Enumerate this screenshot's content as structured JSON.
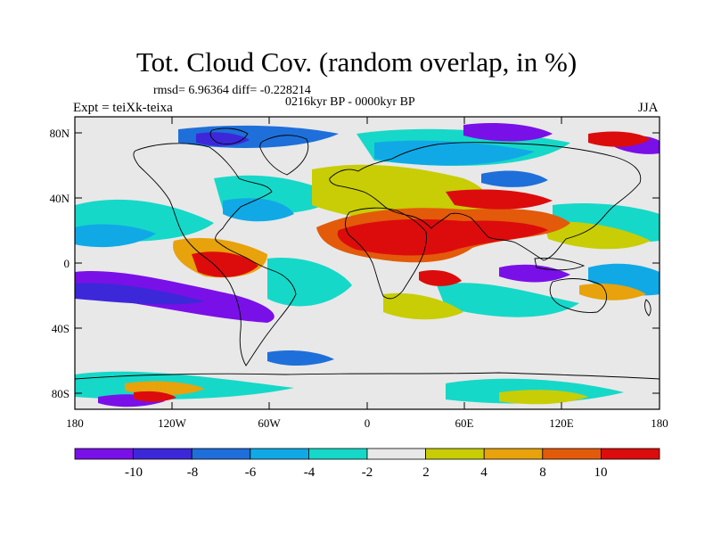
{
  "figure": {
    "title": "Tot. Cloud Cov. (random overlap, in %)",
    "stats": "rmsd= 6.96364 diff= -0.228214",
    "period": "0216kyr BP - 0000kyr BP",
    "experiment": "Expt = teiXk-teixa",
    "season": "JJA"
  },
  "axes": {
    "y_ticks": [
      "80N",
      "40N",
      "0",
      "40S",
      "80S"
    ],
    "x_ticks": [
      "180",
      "120W",
      "60W",
      "0",
      "60E",
      "120E",
      "180"
    ]
  },
  "colorbar": {
    "labels": [
      "-10",
      "-8",
      "-6",
      "-4",
      "-2",
      "2",
      "4",
      "8",
      "10"
    ],
    "colors": [
      "#7a10e8",
      "#3c28d8",
      "#1e6fd9",
      "#10a9e6",
      "#16d8c8",
      "#e8e8e8",
      "#c8cd06",
      "#e7a20c",
      "#e35a0a",
      "#dc0c0c"
    ]
  }
}
